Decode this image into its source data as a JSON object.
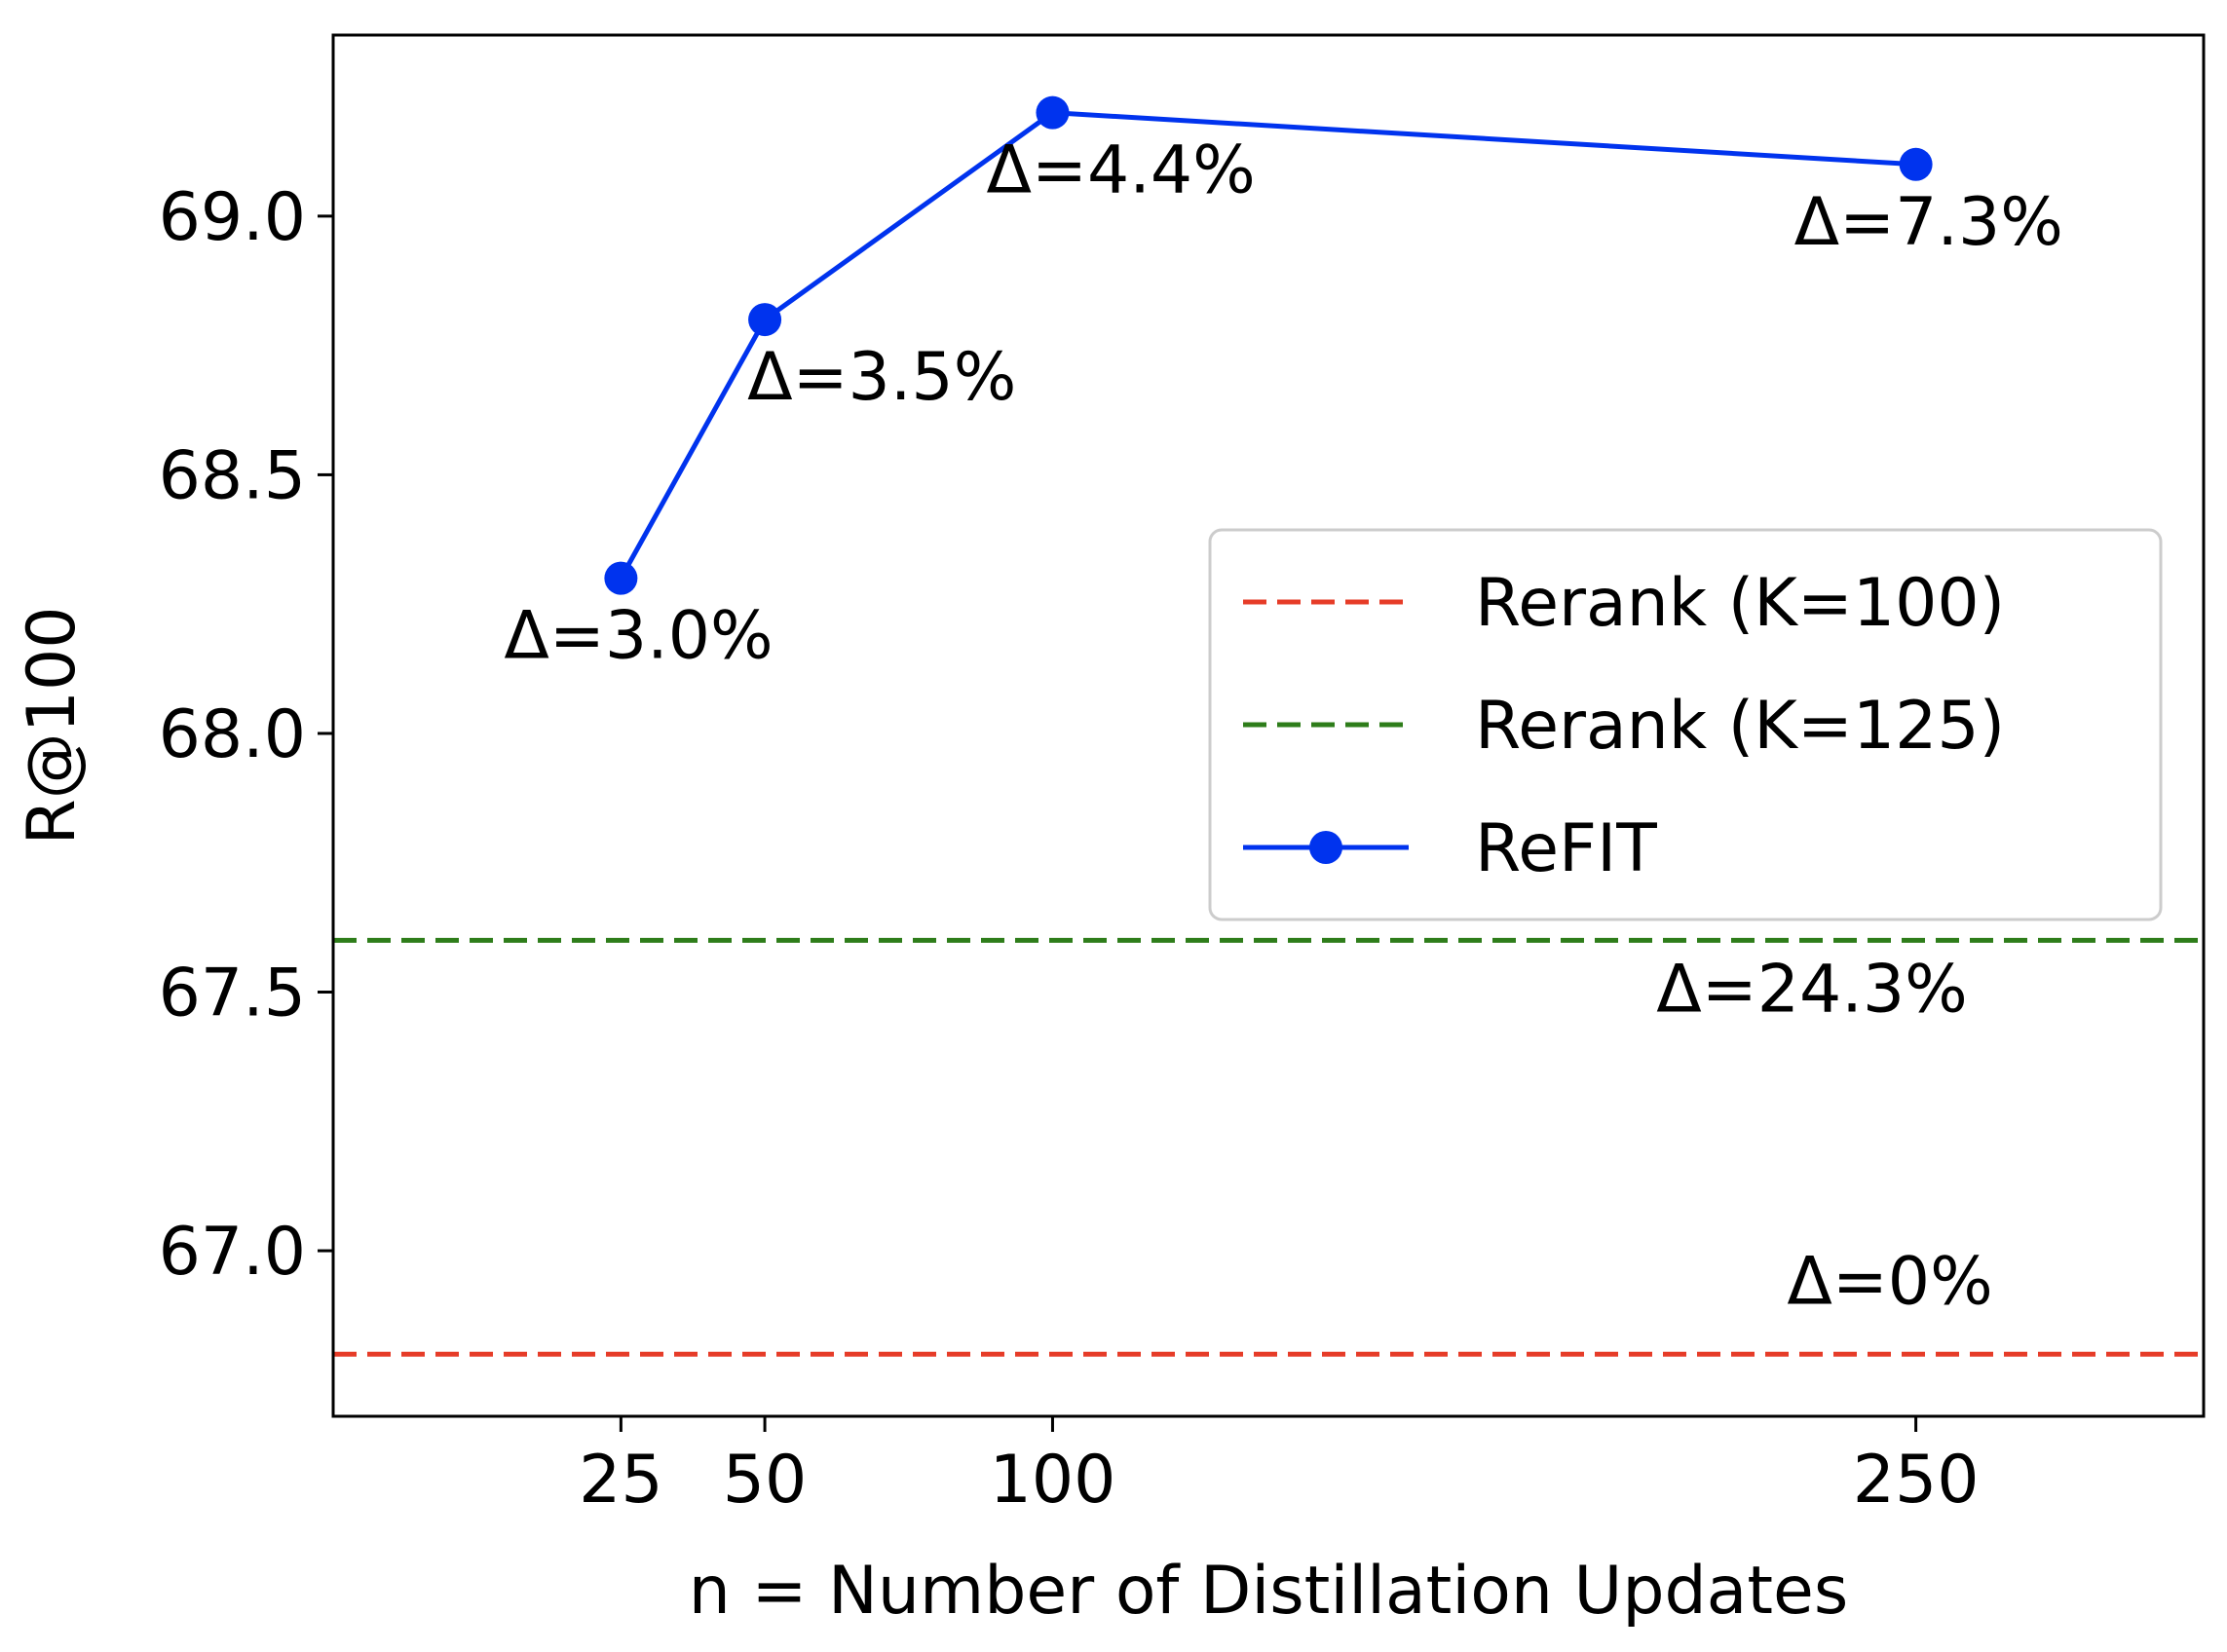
{
  "chart_data": {
    "type": "line",
    "title": "",
    "xlabel": "n = Number of Distillation Updates",
    "ylabel": "R@100",
    "xlim": [
      -25,
      300
    ],
    "ylim": [
      66.68,
      69.35
    ],
    "x_ticks": [
      25,
      50,
      100,
      250
    ],
    "x_tick_labels": [
      "25",
      "50",
      "100",
      "250"
    ],
    "y_ticks": [
      67.0,
      67.5,
      68.0,
      68.5,
      69.0
    ],
    "y_tick_labels": [
      "67.0",
      "67.5",
      "68.0",
      "68.5",
      "69.0"
    ],
    "grid": false,
    "legend_position": "center-right",
    "series": [
      {
        "name": "ReFIT",
        "kind": "line-marker",
        "color": "#0033ee",
        "x": [
          25,
          50,
          100,
          250
        ],
        "y": [
          68.3,
          68.8,
          69.2,
          69.1
        ],
        "annotations": [
          "Δ=3.0%",
          "Δ=3.5%",
          "Δ=4.4%",
          "Δ=7.3%"
        ]
      },
      {
        "name": "Rerank (K=100)",
        "kind": "hline-dashed",
        "color": "#e63c28",
        "y": 66.8,
        "annotation": "Δ=0%"
      },
      {
        "name": "Rerank (K=125)",
        "kind": "hline-dashed",
        "color": "#2e7d1a",
        "y": 67.6,
        "annotation": "Δ=24.3%"
      }
    ],
    "legend_order": [
      "Rerank (K=100)",
      "Rerank (K=125)",
      "ReFIT"
    ]
  }
}
